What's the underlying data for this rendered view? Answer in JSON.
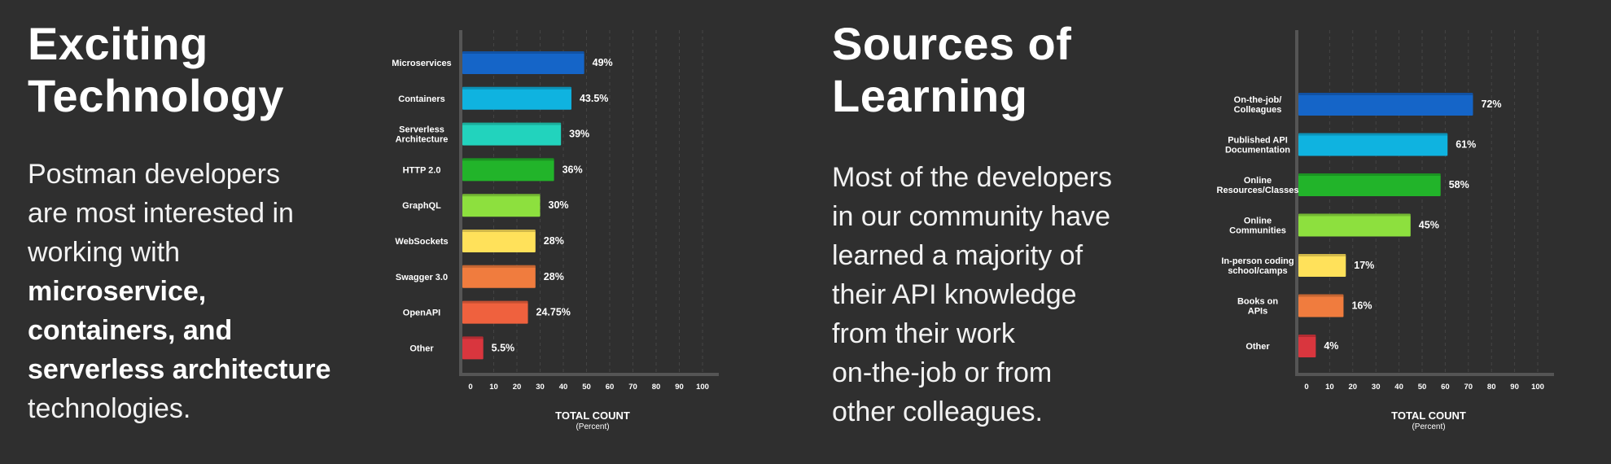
{
  "panels": [
    {
      "title_line1": "Exciting",
      "title_line2": "Technology",
      "desc_lines": [
        {
          "text": "Postman developers",
          "bold": false
        },
        {
          "text": "are most interested in",
          "bold": false
        },
        {
          "text": "working with",
          "bold": false
        },
        {
          "text": "microservice,",
          "bold": true
        },
        {
          "text": "containers, and",
          "bold": true
        },
        {
          "text": "serverless architecture",
          "bold": true
        },
        {
          "text": "technologies.",
          "bold": false
        }
      ]
    },
    {
      "title_line1": "Sources of",
      "title_line2": "Learning",
      "desc_lines": [
        {
          "text": "Most of the developers",
          "bold": false
        },
        {
          "text": "in our community have",
          "bold": false
        },
        {
          "text": "learned a majority of",
          "bold": false
        },
        {
          "text": "their API knowledge",
          "bold": false
        },
        {
          "text": "from their work",
          "bold": false
        },
        {
          "text": "on-the-job or from",
          "bold": false
        },
        {
          "text": "other colleagues.",
          "bold": false
        }
      ]
    }
  ],
  "chart_data": [
    {
      "type": "bar",
      "orientation": "horizontal",
      "categories": [
        [
          "Microservices"
        ],
        [
          "Containers"
        ],
        [
          "Serverless",
          "Architecture"
        ],
        [
          "HTTP 2.0"
        ],
        [
          "GraphQL"
        ],
        [
          "WebSockets"
        ],
        [
          "Swagger 3.0"
        ],
        [
          "OpenAPI"
        ],
        [
          "Other"
        ]
      ],
      "values": [
        49,
        43.5,
        39,
        36,
        30,
        28,
        28,
        24.75,
        5.5
      ],
      "value_labels": [
        "49%",
        "43.5%",
        "39%",
        "36%",
        "30%",
        "28%",
        "28%",
        "24.75%",
        "5.5%"
      ],
      "colors": [
        "#1565c8",
        "#0fb3e0",
        "#22d3bd",
        "#22b42a",
        "#8de03e",
        "#ffe15a",
        "#f07c3e",
        "#ef613e",
        "#d9363e"
      ],
      "xticks": [
        0,
        10,
        20,
        30,
        40,
        50,
        60,
        70,
        80,
        90,
        100
      ],
      "xlim": [
        0,
        100
      ],
      "xlabel": "TOTAL COUNT",
      "xlabel_sub": "(Percent)",
      "grid": true
    },
    {
      "type": "bar",
      "orientation": "horizontal",
      "categories": [
        [
          "On-the-job/",
          "Colleagues"
        ],
        [
          "Published API",
          "Documentation"
        ],
        [
          "Online",
          "Resources/Classes"
        ],
        [
          "Online",
          "Communities"
        ],
        [
          "In-person coding",
          "school/camps"
        ],
        [
          "Books on",
          "APIs"
        ],
        [
          "Other"
        ]
      ],
      "values": [
        72,
        61,
        58,
        45,
        17,
        16,
        4
      ],
      "value_labels": [
        "72%",
        "61%",
        "58%",
        "45%",
        "17%",
        "16%",
        "4%"
      ],
      "colors": [
        "#1565c8",
        "#0fb3e0",
        "#22b42a",
        "#8de03e",
        "#ffe15a",
        "#f07c3e",
        "#d9363e"
      ],
      "xticks": [
        0,
        10,
        20,
        30,
        40,
        50,
        60,
        70,
        80,
        90,
        100
      ],
      "xlim": [
        0,
        100
      ],
      "xlabel": "TOTAL COUNT",
      "xlabel_sub": "(Percent)",
      "grid": true
    }
  ]
}
